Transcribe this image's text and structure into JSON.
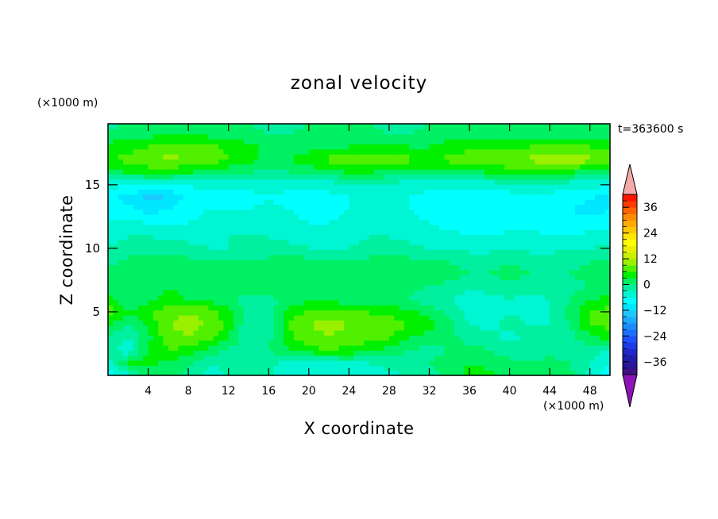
{
  "chart_data": {
    "type": "heatmap",
    "title": "zonal velocity",
    "xlabel": "X coordinate",
    "ylabel": "Z coordinate",
    "x_unit": "(×1000 m)",
    "y_unit": "(×1000 m)",
    "time_label": "t=363600 s",
    "xlim": [
      0,
      50
    ],
    "ylim": [
      0,
      19.8
    ],
    "x_ticks": [
      4,
      8,
      12,
      16,
      20,
      24,
      28,
      32,
      36,
      40,
      44,
      48
    ],
    "y_ticks": [
      5,
      10,
      15
    ],
    "colorbar": {
      "min": -42,
      "max": 42,
      "step": 3,
      "tick_values": [
        36,
        24,
        12,
        0,
        -12,
        -24,
        -36
      ],
      "extend": "both",
      "colors": [
        "#3c1282",
        "#2a1696",
        "#1e1eaa",
        "#1e28c8",
        "#1e3ce6",
        "#1e50ff",
        "#1e6eff",
        "#1e8cff",
        "#1eaaff",
        "#1ec8ff",
        "#00e6ff",
        "#00ffff",
        "#00f5d2",
        "#00f0a0",
        "#00f064",
        "#00f000",
        "#50f000",
        "#9bf000",
        "#c8f000",
        "#e6f000",
        "#ffff00",
        "#ffe600",
        "#ffc800",
        "#ffaa00",
        "#ff8c00",
        "#ff6400",
        "#ff3c00",
        "#ff1400"
      ],
      "under_color": "#8c14b4",
      "over_color": "#f5aaaa"
    },
    "grid_x": [
      0,
      2,
      4,
      6,
      8,
      10,
      12,
      14,
      16,
      18,
      20,
      22,
      24,
      26,
      28,
      30,
      32,
      34,
      36,
      38,
      40,
      42,
      44,
      46,
      48,
      50
    ],
    "grid_z": [
      0,
      1,
      2,
      3,
      4,
      5,
      6,
      7,
      8,
      9,
      10,
      11,
      12,
      13,
      14,
      15,
      16,
      17,
      18,
      19,
      19.8
    ],
    "values": [
      [
        -8,
        -4,
        1,
        2,
        -1,
        -4,
        -3,
        -2,
        -3,
        -4,
        -4,
        -5,
        -5,
        -5,
        -4,
        -3,
        -2,
        1,
        4,
        4,
        2,
        1,
        3,
        1,
        -4,
        -9
      ],
      [
        -4,
        3,
        4,
        2,
        1,
        -3,
        -2,
        -1,
        -2,
        -4,
        -5,
        -4,
        -3,
        -3,
        -2,
        -1,
        0,
        2,
        3,
        2,
        1,
        0,
        1,
        0,
        -3,
        -6
      ],
      [
        -2,
        -5,
        3,
        6,
        5,
        2,
        -1,
        -2,
        0,
        3,
        5,
        6,
        5,
        4,
        2,
        0,
        -1,
        0,
        1,
        0,
        -2,
        -1,
        -1,
        -2,
        -2,
        -3
      ],
      [
        -1,
        -3,
        2,
        8,
        9,
        7,
        3,
        -2,
        -1,
        5,
        8,
        9,
        8,
        7,
        6,
        3,
        2,
        1,
        -1,
        -2,
        -4,
        -2,
        -3,
        -1,
        2,
        4
      ],
      [
        3,
        0,
        4,
        9,
        10,
        9,
        5,
        -3,
        -2,
        6,
        9,
        10,
        9,
        8,
        8,
        6,
        4,
        1,
        -3,
        -4,
        -2,
        -3,
        -3,
        0,
        6,
        7
      ],
      [
        8,
        3,
        5,
        8,
        9,
        8,
        4,
        -2,
        -2,
        4,
        7,
        8,
        7,
        6,
        5,
        4,
        2,
        -1,
        -4,
        -4,
        -3,
        -4,
        -3,
        1,
        6,
        8
      ],
      [
        4,
        1,
        2,
        4,
        3,
        2,
        1,
        -1,
        -1,
        1,
        2,
        2,
        1,
        0,
        1,
        0,
        -2,
        -3,
        -5,
        -4,
        -3,
        -4,
        -3,
        0,
        3,
        4
      ],
      [
        1,
        1,
        2,
        3,
        2,
        1,
        0,
        1,
        2,
        2,
        1,
        0,
        0,
        1,
        2,
        1,
        0,
        -1,
        -2,
        -2,
        -1,
        -2,
        -2,
        -1,
        0,
        1
      ],
      [
        1,
        2,
        3,
        2,
        2,
        1,
        0,
        1,
        2,
        3,
        2,
        1,
        0,
        1,
        2,
        3,
        2,
        1,
        0,
        0,
        1,
        0,
        0,
        0,
        1,
        2
      ],
      [
        -1,
        1,
        2,
        1,
        1,
        0,
        0,
        0,
        1,
        2,
        1,
        0,
        0,
        1,
        2,
        1,
        0,
        0,
        -1,
        -1,
        0,
        -1,
        -1,
        -1,
        0,
        1
      ],
      [
        -3,
        -2,
        -1,
        -2,
        -2,
        -3,
        -3,
        -3,
        -2,
        -2,
        -3,
        -3,
        -3,
        -2,
        -2,
        -2,
        -3,
        -3,
        -4,
        -4,
        -3,
        -4,
        -4,
        -3,
        -3,
        -2
      ],
      [
        -4,
        -3,
        -3,
        -4,
        -4,
        -4,
        -3,
        -3,
        -3,
        -4,
        -4,
        -5,
        -4,
        -3,
        -3,
        -4,
        -5,
        -5,
        -6,
        -6,
        -5,
        -5,
        -6,
        -6,
        -5,
        -5
      ],
      [
        -5,
        -5,
        -6,
        -6,
        -6,
        -5,
        -5,
        -5,
        -4,
        -5,
        -6,
        -6,
        -5,
        -4,
        -4,
        -5,
        -6,
        -7,
        -8,
        -8,
        -8,
        -7,
        -7,
        -8,
        -8,
        -7
      ],
      [
        -7,
        -8,
        -10,
        -9,
        -7,
        -6,
        -6,
        -6,
        -5,
        -6,
        -7,
        -7,
        -6,
        -5,
        -5,
        -6,
        -7,
        -8,
        -8,
        -8,
        -8,
        -7,
        -8,
        -9,
        -10,
        -9
      ],
      [
        -8,
        -10,
        -13,
        -12,
        -8,
        -7,
        -7,
        -7,
        -6,
        -7,
        -7,
        -7,
        -6,
        -6,
        -6,
        -6,
        -7,
        -7,
        -7,
        -7,
        -7,
        -6,
        -7,
        -8,
        -9,
        -10
      ],
      [
        -5,
        -6,
        -7,
        -7,
        -6,
        -5,
        -5,
        -5,
        -5,
        -5,
        -5,
        -5,
        -4,
        -4,
        -4,
        -5,
        -5,
        -5,
        -5,
        -5,
        -5,
        -4,
        -4,
        -5,
        -5,
        -6
      ],
      [
        2,
        3,
        4,
        4,
        3,
        2,
        1,
        0,
        -1,
        0,
        1,
        2,
        3,
        3,
        2,
        1,
        1,
        1,
        2,
        3,
        4,
        3,
        3,
        3,
        2,
        2
      ],
      [
        6,
        7,
        9,
        10,
        9,
        8,
        6,
        4,
        2,
        3,
        5,
        7,
        8,
        9,
        8,
        7,
        6,
        7,
        8,
        9,
        9,
        10,
        11,
        11,
        10,
        9
      ],
      [
        4,
        5,
        6,
        7,
        8,
        7,
        5,
        4,
        2,
        1,
        2,
        3,
        3,
        4,
        4,
        3,
        3,
        4,
        5,
        6,
        5,
        6,
        7,
        7,
        6,
        5
      ],
      [
        1,
        2,
        2,
        3,
        3,
        2,
        2,
        1,
        0,
        0,
        1,
        1,
        1,
        1,
        0,
        0,
        1,
        2,
        2,
        2,
        1,
        2,
        2,
        2,
        1,
        1
      ],
      [
        -1,
        0,
        0,
        1,
        1,
        1,
        0,
        0,
        -1,
        -1,
        0,
        0,
        0,
        0,
        -1,
        -1,
        0,
        0,
        1,
        1,
        0,
        1,
        1,
        1,
        0,
        0
      ]
    ]
  }
}
